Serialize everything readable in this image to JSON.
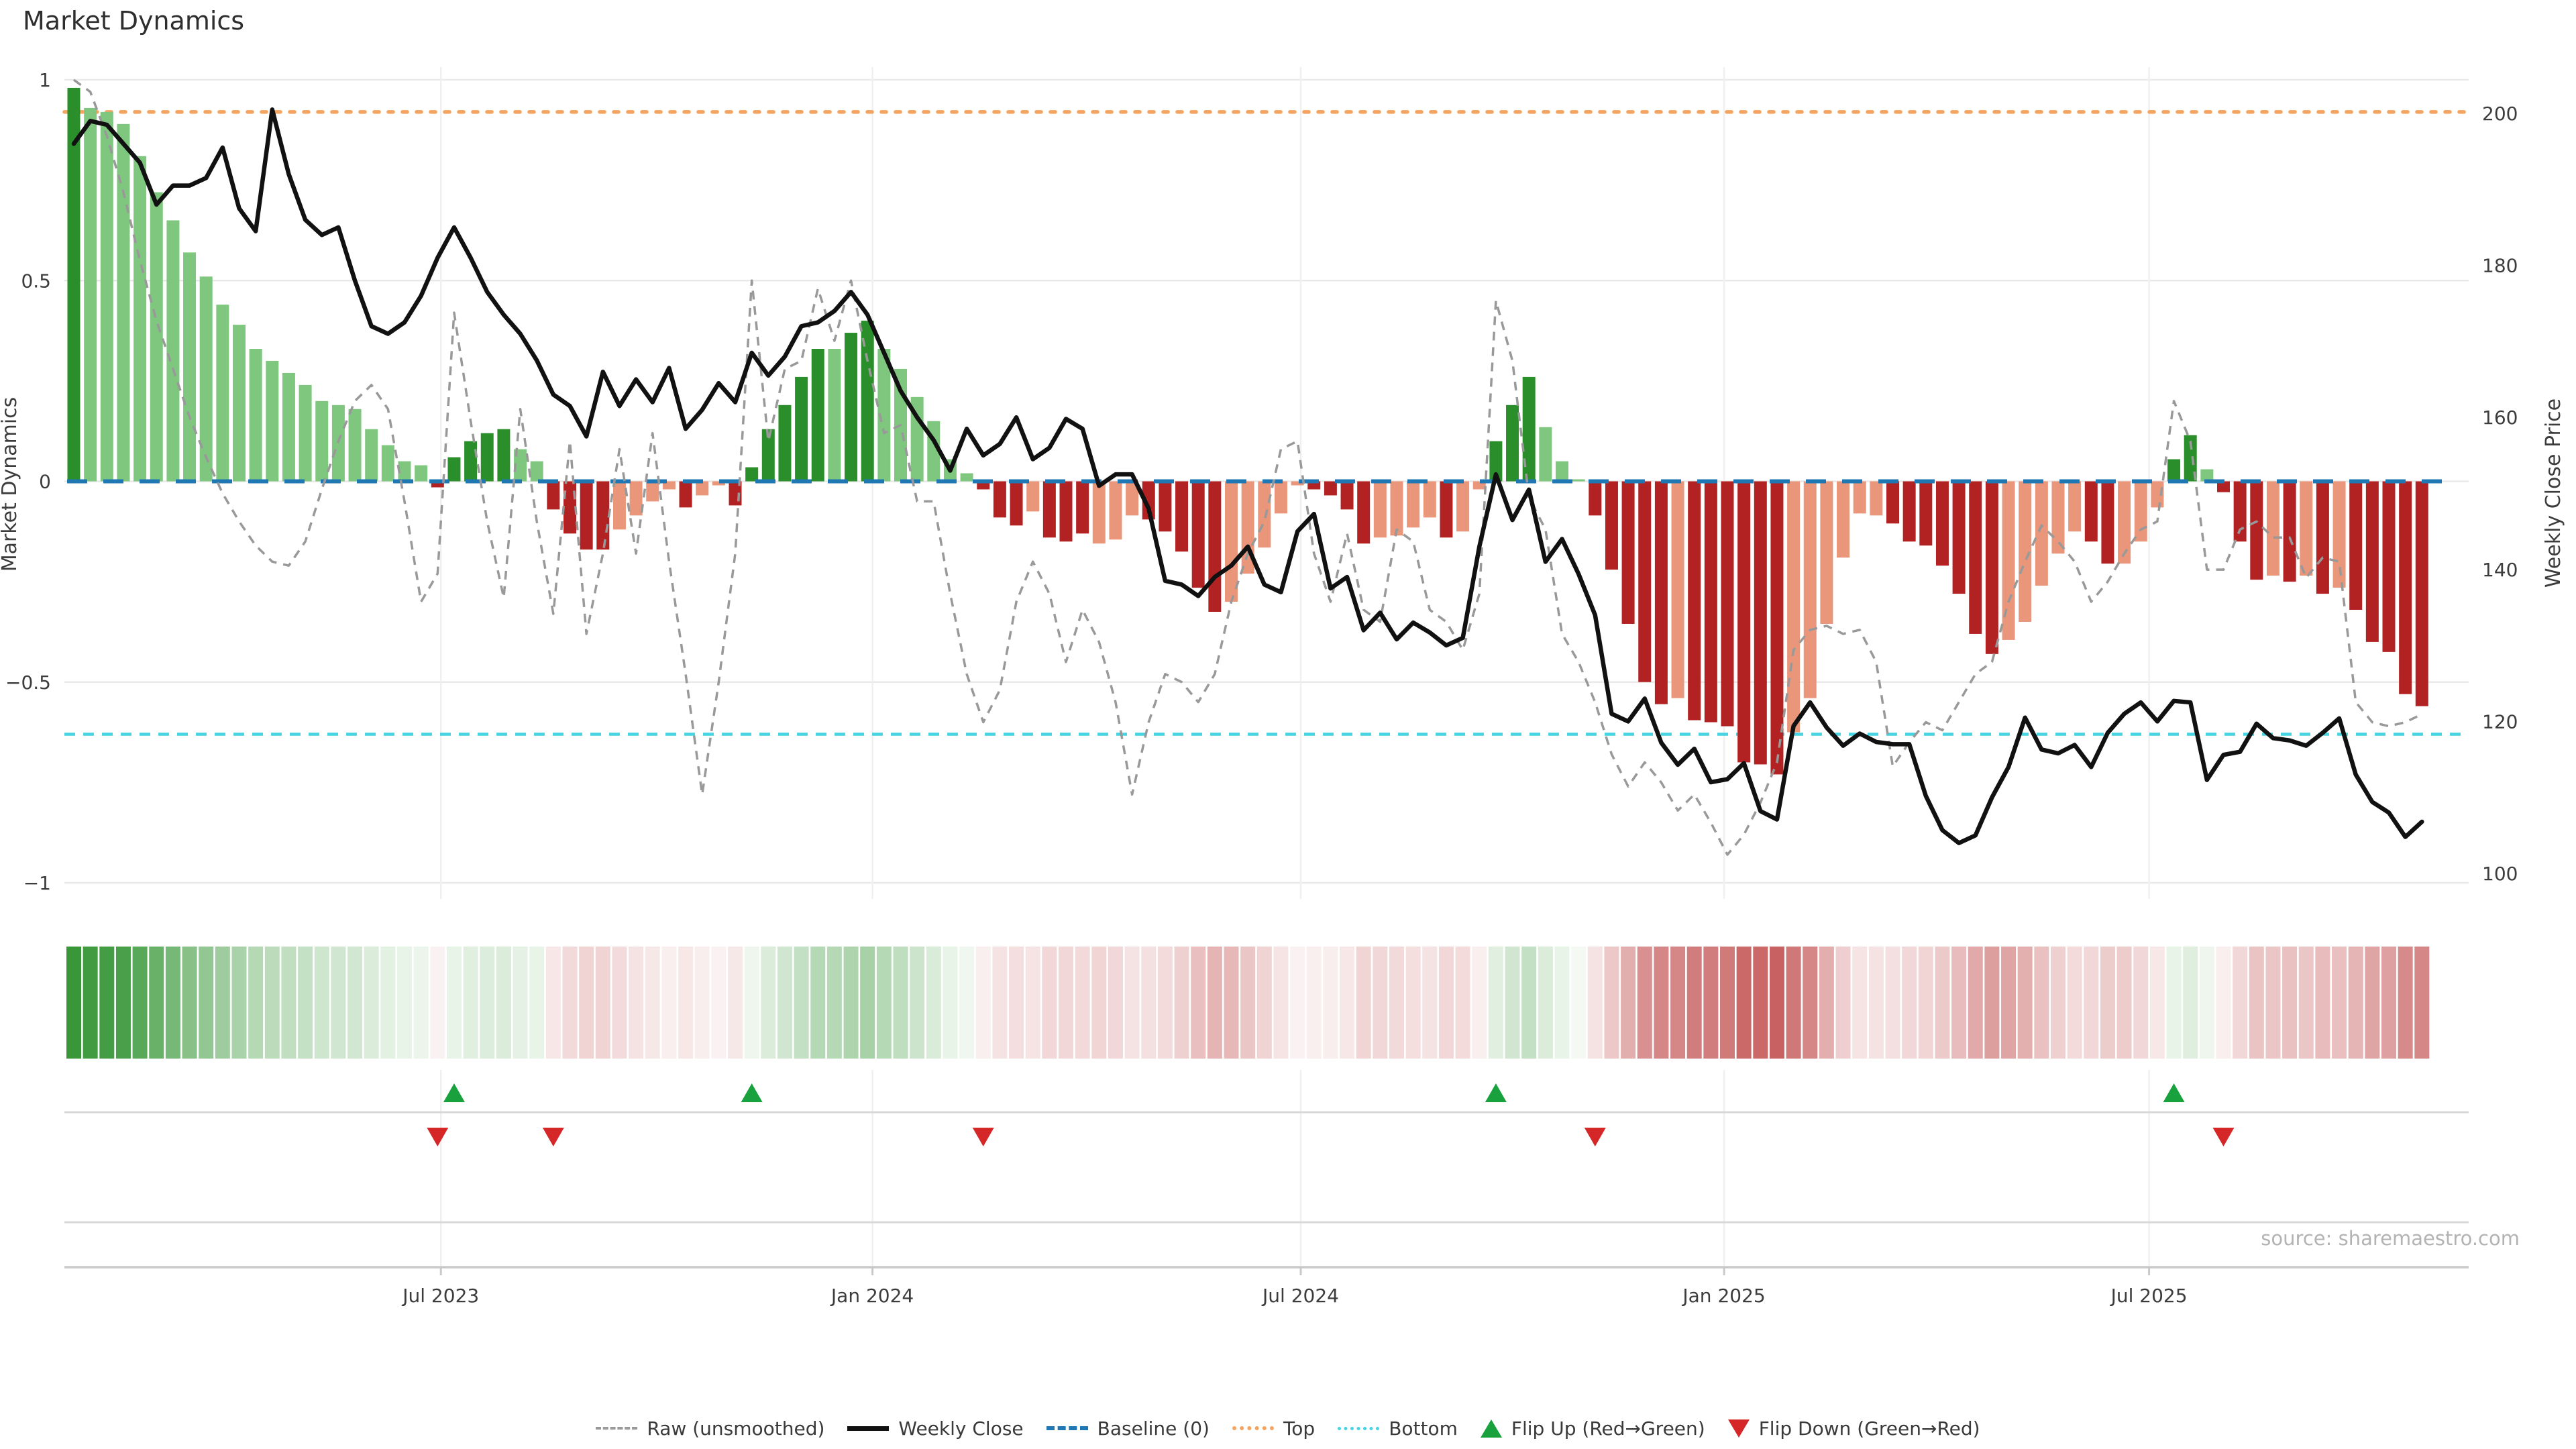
{
  "title": "Market Dynamics",
  "axes": {
    "left": {
      "label": "Market Dynamics",
      "tick_labels": [
        "1",
        "0.5",
        "0",
        "−0.5",
        "−1"
      ],
      "tick_values": [
        1,
        0.5,
        0,
        -0.5,
        -1
      ]
    },
    "right": {
      "label": "Weekly Close Price",
      "tick_labels": [
        "200",
        "180",
        "160",
        "140",
        "120",
        "100"
      ],
      "tick_values": [
        200,
        180,
        160,
        140,
        120,
        100
      ]
    }
  },
  "x_axis": {
    "tick_labels": [
      "Jul 2023",
      "Jan 2024",
      "Jul 2024",
      "Jan 2025",
      "Jul 2025"
    ],
    "tick_weeks": [
      22.2,
      48.3,
      74.2,
      99.8,
      125.5
    ]
  },
  "source_note": "source: sharemaestro.com",
  "legend": {
    "items": [
      {
        "label": "Raw (unsmoothed)"
      },
      {
        "label": "Weekly Close"
      },
      {
        "label": "Baseline (0)"
      },
      {
        "label": "Top"
      },
      {
        "label": "Bottom"
      },
      {
        "label": "Flip Up (Red→Green)"
      },
      {
        "label": "Flip Down (Green→Red)"
      }
    ]
  },
  "colors": {
    "bar_pos_dark": "#2a8f2a",
    "bar_pos_light": "#7fc77f",
    "bar_neg_dark": "#b22222",
    "bar_neg_light": "#e9967a",
    "close_line": "#111111",
    "raw_line": "#999999",
    "baseline": "#1f77b4",
    "top_line": "#f4a460",
    "bottom_line": "#45d4e4",
    "flip_up": "#18a13d",
    "flip_down": "#d62728",
    "grid": "#e9e9e9",
    "vgrid": "#f0f0f0",
    "panel_line": "#d8d8d8",
    "heat_pos_rgb": "42,143,42",
    "heat_neg_rgb": "178,34,34"
  },
  "chart_data": {
    "type": "bar+line combo (oscillator with price overlay, heat strip, flip markers)",
    "weeks": 143,
    "ylim_left": [
      -1.04,
      1.03
    ],
    "ylim_right": [
      96.5,
      205.6
    ],
    "baseline": 0,
    "top_threshold": 0.92,
    "bottom_threshold": -0.63,
    "grid": "horizontal at left ticks, vertical at half-year dates",
    "legend_position": "bottom center",
    "bar_values": [
      0.98,
      0.93,
      0.92,
      0.89,
      0.81,
      0.72,
      0.65,
      0.57,
      0.51,
      0.44,
      0.39,
      0.33,
      0.3,
      0.27,
      0.24,
      0.2,
      0.19,
      0.18,
      0.13,
      0.09,
      0.05,
      0.04,
      -0.015,
      0.06,
      0.1,
      0.12,
      0.13,
      0.08,
      0.05,
      -0.07,
      -0.13,
      -0.17,
      -0.17,
      -0.12,
      -0.085,
      -0.05,
      -0.02,
      -0.065,
      -0.035,
      -0.01,
      -0.06,
      0.035,
      0.13,
      0.19,
      0.26,
      0.33,
      0.33,
      0.37,
      0.4,
      0.33,
      0.28,
      0.21,
      0.15,
      0.055,
      0.02,
      -0.02,
      -0.09,
      -0.11,
      -0.075,
      -0.14,
      -0.15,
      -0.13,
      -0.155,
      -0.145,
      -0.085,
      -0.095,
      -0.125,
      -0.175,
      -0.265,
      -0.325,
      -0.3,
      -0.23,
      -0.165,
      -0.08,
      -0.01,
      -0.02,
      -0.035,
      -0.07,
      -0.155,
      -0.14,
      -0.135,
      -0.115,
      -0.09,
      -0.14,
      -0.125,
      -0.02,
      0.1,
      0.19,
      0.26,
      0.135,
      0.05,
      0.005,
      -0.085,
      -0.22,
      -0.355,
      -0.5,
      -0.555,
      -0.54,
      -0.595,
      -0.6,
      -0.61,
      -0.7,
      -0.705,
      -0.73,
      -0.625,
      -0.54,
      -0.355,
      -0.19,
      -0.08,
      -0.085,
      -0.105,
      -0.15,
      -0.16,
      -0.21,
      -0.28,
      -0.38,
      -0.43,
      -0.395,
      -0.35,
      -0.26,
      -0.18,
      -0.125,
      -0.15,
      -0.205,
      -0.205,
      -0.15,
      -0.065,
      0.055,
      0.115,
      0.03,
      -0.027,
      -0.15,
      -0.245,
      -0.235,
      -0.25,
      -0.235,
      -0.28,
      -0.265,
      -0.32,
      -0.4,
      -0.425,
      -0.53,
      -0.56
    ],
    "bar_shades": "DLLLLLLLLLLLLLLLLLLLLLDDDDDLLDDDDLLLLDLLDDDDDDLDDLLLLLLDDDLDDDLLLDDDDDLLLLLDDDDLLLLDLLDDDLLLDDDDDLDDDDDDLLLLLLDDDDDDDLLLLLDDLLLDDLDDDLDLDLDDDDD",
    "weekly_close": [
      196,
      199,
      198.5,
      196,
      193.5,
      188,
      190.5,
      190.5,
      191.5,
      195.5,
      187.5,
      184.5,
      200.5,
      192,
      186,
      184,
      185,
      178,
      172,
      171,
      172.5,
      176,
      181,
      185,
      181,
      176.5,
      173.5,
      171,
      167.5,
      163,
      161.5,
      157.5,
      166,
      161.5,
      165,
      162,
      166.5,
      158.5,
      161,
      164.5,
      162,
      168.5,
      165.5,
      168,
      172,
      172.5,
      174,
      176.5,
      173.5,
      168.5,
      163.5,
      160,
      157,
      153,
      158.5,
      155,
      156.5,
      160,
      154.5,
      156,
      159.8,
      158.5,
      151,
      152.5,
      152.5,
      148,
      138.5,
      138,
      136.5,
      139,
      140.5,
      143,
      138,
      137,
      145,
      147.3,
      137.5,
      139,
      132,
      134.3,
      130.8,
      133,
      131.7,
      130,
      131,
      143,
      152.5,
      146.5,
      150.5,
      141,
      144,
      139.4,
      134,
      121,
      120,
      123,
      117.2,
      114.3,
      116.4,
      112,
      112.4,
      114.5,
      108.2,
      107.1,
      119.4,
      122.5,
      119.2,
      116.8,
      118.4,
      117.3,
      117,
      117,
      110.2,
      105.7,
      104,
      105,
      110,
      114,
      120.5,
      116.3,
      115.8,
      116.9,
      114,
      118.5,
      121,
      122.5,
      120,
      122.7,
      122.5,
      112.3,
      115.6,
      116,
      119.7,
      117.8,
      117.5,
      116.8,
      118.5,
      120.4,
      113,
      109.4,
      108,
      104.8,
      106.8
    ],
    "raw": [
      1.0,
      0.97,
      0.86,
      0.72,
      0.55,
      0.4,
      0.28,
      0.16,
      0.06,
      -0.03,
      -0.1,
      -0.16,
      -0.2,
      -0.21,
      -0.15,
      -0.02,
      0.1,
      0.2,
      0.24,
      0.18,
      -0.05,
      -0.3,
      -0.23,
      0.42,
      0.15,
      -0.1,
      -0.29,
      0.18,
      -0.1,
      -0.33,
      0.1,
      -0.38,
      -0.18,
      0.08,
      -0.18,
      0.12,
      -0.2,
      -0.48,
      -0.78,
      -0.5,
      -0.18,
      0.5,
      0.1,
      0.28,
      0.3,
      0.48,
      0.35,
      0.5,
      0.3,
      0.12,
      0.14,
      -0.05,
      -0.05,
      -0.28,
      -0.48,
      -0.6,
      -0.52,
      -0.3,
      -0.2,
      -0.28,
      -0.45,
      -0.32,
      -0.4,
      -0.55,
      -0.78,
      -0.6,
      -0.48,
      -0.5,
      -0.55,
      -0.48,
      -0.3,
      -0.18,
      -0.1,
      0.08,
      0.1,
      -0.18,
      -0.3,
      -0.13,
      -0.32,
      -0.35,
      -0.12,
      -0.15,
      -0.32,
      -0.35,
      -0.42,
      -0.28,
      0.45,
      0.3,
      -0.04,
      -0.12,
      -0.38,
      -0.45,
      -0.55,
      -0.68,
      -0.76,
      -0.7,
      -0.75,
      -0.82,
      -0.78,
      -0.85,
      -0.93,
      -0.88,
      -0.8,
      -0.7,
      -0.42,
      -0.37,
      -0.36,
      -0.38,
      -0.37,
      -0.45,
      -0.71,
      -0.65,
      -0.6,
      -0.62,
      -0.55,
      -0.48,
      -0.45,
      -0.3,
      -0.2,
      -0.11,
      -0.15,
      -0.2,
      -0.3,
      -0.25,
      -0.18,
      -0.12,
      -0.1,
      0.2,
      0.1,
      -0.22,
      -0.22,
      -0.12,
      -0.1,
      -0.14,
      -0.14,
      -0.24,
      -0.19,
      -0.2,
      -0.55,
      -0.6,
      -0.61,
      -0.6,
      -0.58
    ],
    "flip_up_weeks": [
      23,
      41,
      86,
      127
    ],
    "flip_down_weeks": [
      22,
      29,
      55,
      92,
      130
    ]
  }
}
